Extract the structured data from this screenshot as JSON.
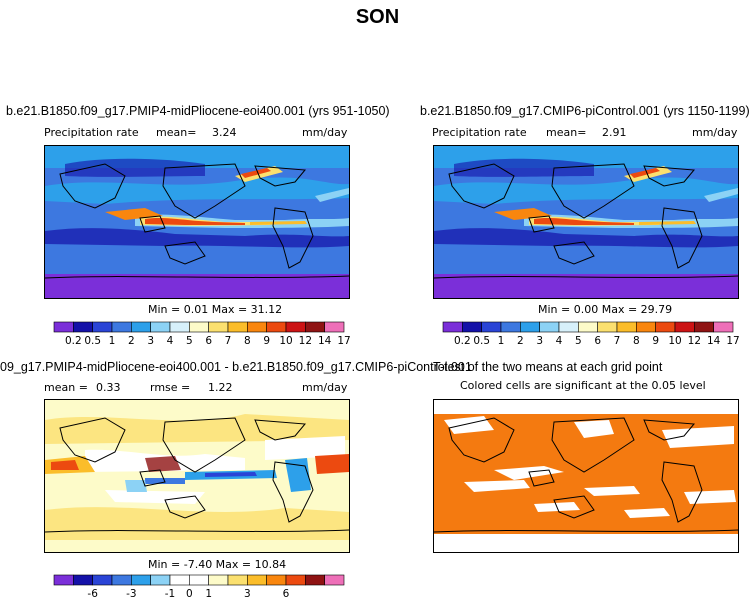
{
  "title": "SON",
  "panels": [
    {
      "title": "b.e21.B1850.f09_g17.PMIP4-midPliocene-eoi400.001 (yrs 951-1050)",
      "left": "Precipitation rate",
      "mean_label": "mean=",
      "mean": "3.24",
      "units": "mm/day",
      "minmax": "Min =   0.01  Max =   31.12",
      "colorbar": {
        "colors": [
          "#7b2fd9",
          "#1411a8",
          "#2a44d6",
          "#3d78e0",
          "#2da0ea",
          "#8cd2f5",
          "#d7f0fa",
          "#fdfbc9",
          "#fbe06f",
          "#fbbd2a",
          "#f9860e",
          "#ec4a10",
          "#cc1314",
          "#8f1313",
          "#ee6fb8"
        ],
        "labels": [
          "0.2",
          "0.5",
          "1",
          "2",
          "3",
          "4",
          "5",
          "6",
          "7",
          "8",
          "9",
          "10",
          "12",
          "14",
          "17"
        ]
      }
    },
    {
      "title": "b.e21.B1850.f09_g17.CMIP6-piControl.001 (yrs 1150-1199)",
      "left": "Precipitation rate",
      "mean_label": "mean=",
      "mean": "2.91",
      "units": "mm/day",
      "minmax": "Min =   0.00  Max =   29.79",
      "colorbar": {
        "colors": [
          "#7b2fd9",
          "#1411a8",
          "#2a44d6",
          "#3d78e0",
          "#2da0ea",
          "#8cd2f5",
          "#d7f0fa",
          "#fdfbc9",
          "#fbe06f",
          "#fbbd2a",
          "#f9860e",
          "#ec4a10",
          "#cc1314",
          "#8f1313",
          "#ee6fb8"
        ],
        "labels": [
          "0.2",
          "0.5",
          "1",
          "2",
          "3",
          "4",
          "5",
          "6",
          "7",
          "8",
          "9",
          "10",
          "12",
          "14",
          "17"
        ]
      }
    },
    {
      "title": "09_g17.PMIP4-midPliocene-eoi400.001 - b.e21.B1850.f09_g17.CMIP6-piControl.001",
      "mean_label": "mean =",
      "mean": "0.33",
      "rmse_label": "rmse =",
      "rmse": "1.22",
      "units": "mm/day",
      "minmax": "Min =   -7.40  Max =   10.84",
      "colorbar": {
        "colors": [
          "#7b2fd9",
          "#1411a8",
          "#2a44d6",
          "#3d78e0",
          "#2da0ea",
          "#8cd2f5",
          "#ffffff",
          "#ffffff",
          "#fdfbc9",
          "#fbe06f",
          "#fbbd2a",
          "#f9860e",
          "#ec4a10",
          "#8f1313",
          "#ee6fb8"
        ],
        "labels": [
          "-6",
          "-3",
          "-1",
          "0",
          "1",
          "3",
          "6"
        ]
      }
    },
    {
      "title": "T-test of the two means at each grid point",
      "note": "Colored cells are significant at the 0.05 level"
    }
  ],
  "chart_data": [
    {
      "type": "heatmap",
      "title": "b.e21.B1850.f09_g17.PMIP4-midPliocene-eoi400.001 (yrs 951-1050)",
      "variable": "Precipitation rate",
      "units": "mm/day",
      "mean": 3.24,
      "min": 0.01,
      "max": 31.12,
      "levels": [
        0.2,
        0.5,
        1,
        2,
        3,
        4,
        5,
        6,
        7,
        8,
        9,
        10,
        12,
        14,
        17
      ]
    },
    {
      "type": "heatmap",
      "title": "b.e21.B1850.f09_g17.CMIP6-piControl.001 (yrs 1150-1199)",
      "variable": "Precipitation rate",
      "units": "mm/day",
      "mean": 2.91,
      "min": 0.0,
      "max": 29.79,
      "levels": [
        0.2,
        0.5,
        1,
        2,
        3,
        4,
        5,
        6,
        7,
        8,
        9,
        10,
        12,
        14,
        17
      ]
    },
    {
      "type": "heatmap",
      "title": "09_g17.PMIP4-midPliocene-eoi400.001 - b.e21.B1850.f09_g17.CMIP6-piControl.001",
      "units": "mm/day",
      "mean": 0.33,
      "rmse": 1.22,
      "min": -7.4,
      "max": 10.84,
      "levels": [
        -6,
        -3,
        -1,
        0,
        1,
        3,
        6
      ]
    },
    {
      "type": "heatmap",
      "title": "T-test of the two means at each grid point",
      "significance_level": 0.05,
      "significant_color": "#f47a10"
    }
  ]
}
